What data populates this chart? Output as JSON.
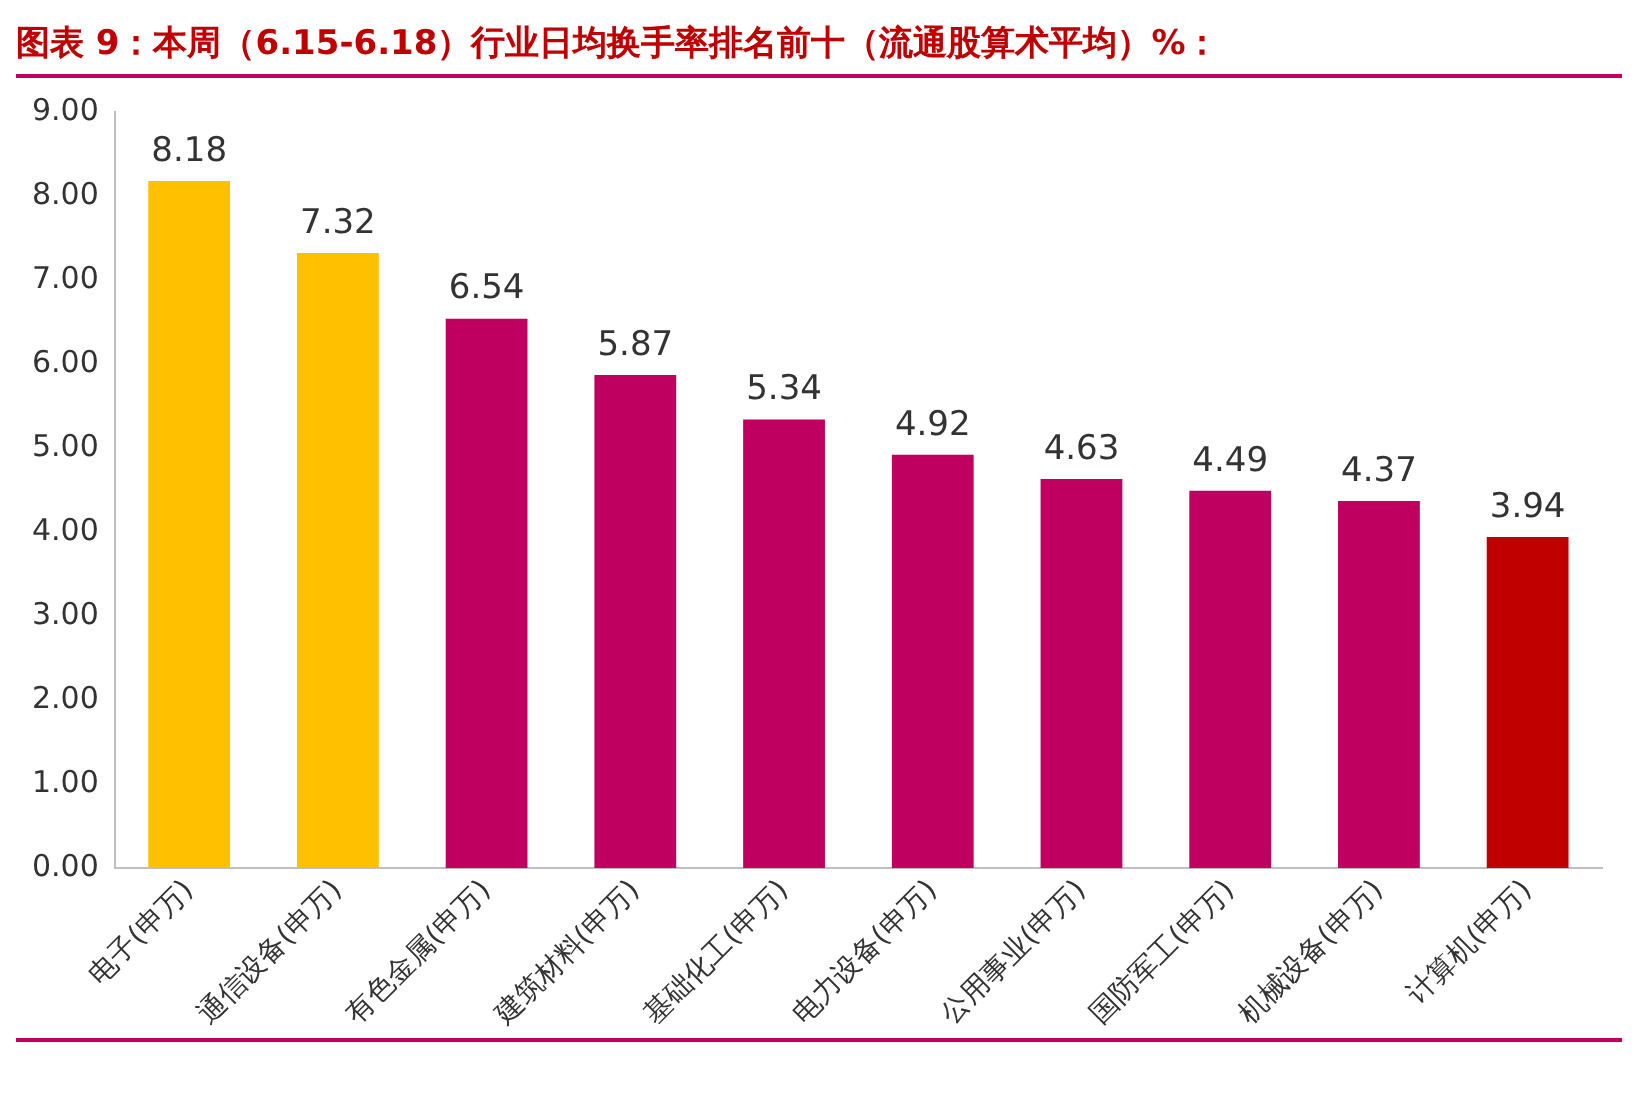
{
  "chart_data": {
    "type": "bar",
    "title": "图表 9：本周（6.15-6.18）行业日均换手率排名前十（流通股算术平均）%：",
    "categories": [
      "电子(申万)",
      "通信设备(申万)",
      "有色金属(申万)",
      "建筑材料(申万)",
      "基础化工(申万)",
      "电力设备(申万)",
      "公用事业(申万)",
      "国防军工(申万)",
      "机械设备(申万)",
      "计算机(申万)"
    ],
    "values": [
      8.18,
      7.32,
      6.54,
      5.87,
      5.34,
      4.92,
      4.63,
      4.49,
      4.37,
      3.94
    ],
    "colors": [
      "#ffc000",
      "#ffc000",
      "#c00060",
      "#c00060",
      "#c00060",
      "#c00060",
      "#c00060",
      "#c00060",
      "#c00060",
      "#c00000"
    ],
    "ylim": [
      0,
      9
    ],
    "yticks": [
      {
        "value": 0,
        "label": "0.00"
      },
      {
        "value": 1,
        "label": "1.00"
      },
      {
        "value": 2,
        "label": "2.00"
      },
      {
        "value": 3,
        "label": "3.00"
      },
      {
        "value": 4,
        "label": "4.00"
      },
      {
        "value": 5,
        "label": "5.00"
      },
      {
        "value": 6,
        "label": "6.00"
      },
      {
        "value": 7,
        "label": "7.00"
      },
      {
        "value": 8,
        "label": "8.00"
      },
      {
        "value": 9,
        "label": "9.00"
      }
    ],
    "data_labels": true,
    "grid": false,
    "legend": false
  }
}
